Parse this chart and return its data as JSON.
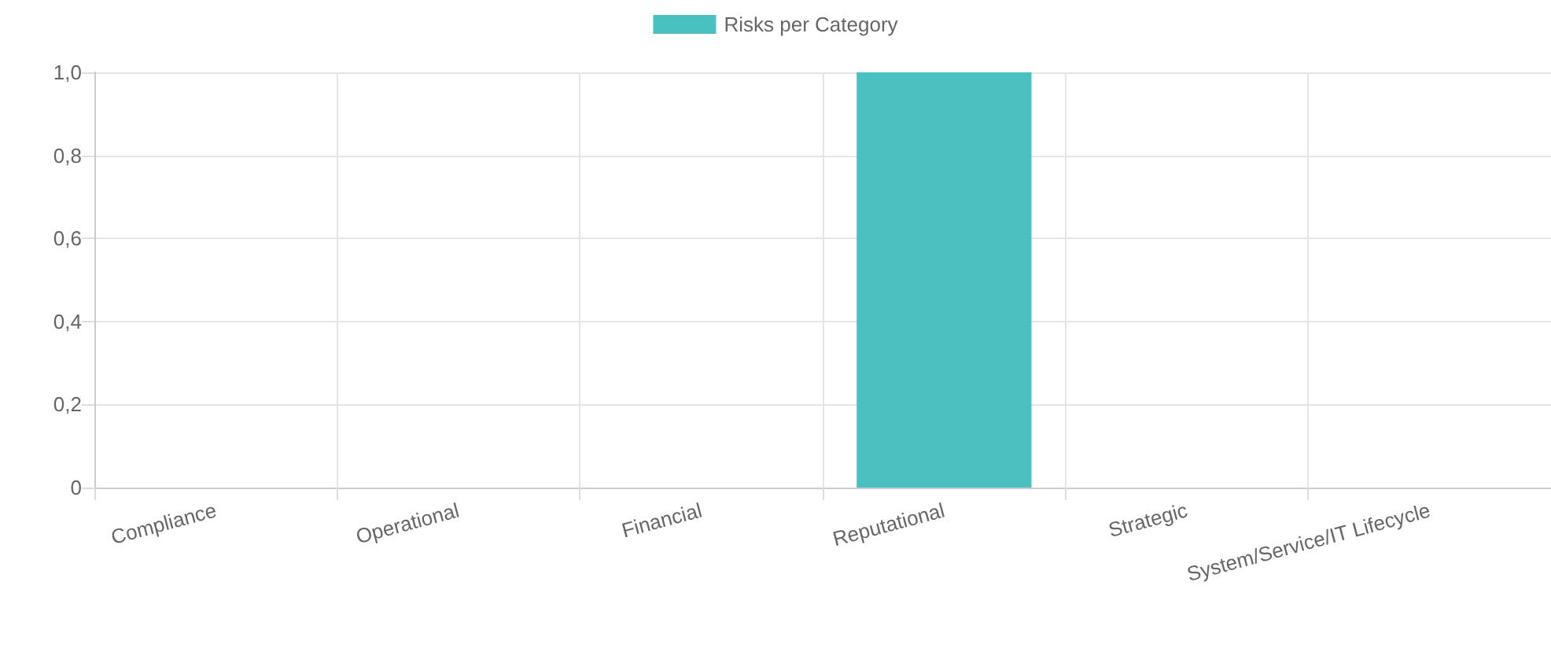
{
  "chart_data": {
    "type": "bar",
    "categories": [
      "Compliance",
      "Operational",
      "Financial",
      "Reputational",
      "Strategic",
      "System/Service/IT Lifecycle"
    ],
    "series": [
      {
        "name": "Risks per Category",
        "color": "#4bc0c0",
        "values": [
          0,
          0,
          0,
          1,
          0,
          0
        ]
      }
    ],
    "ylim": [
      0,
      1
    ],
    "yticks": [
      {
        "value": 0,
        "label": "0"
      },
      {
        "value": 0.2,
        "label": "0,2"
      },
      {
        "value": 0.4,
        "label": "0,4"
      },
      {
        "value": 0.6,
        "label": "0,6"
      },
      {
        "value": 0.8,
        "label": "0,8"
      },
      {
        "value": 1,
        "label": "1,0"
      }
    ],
    "grid": true,
    "legend": "top"
  }
}
